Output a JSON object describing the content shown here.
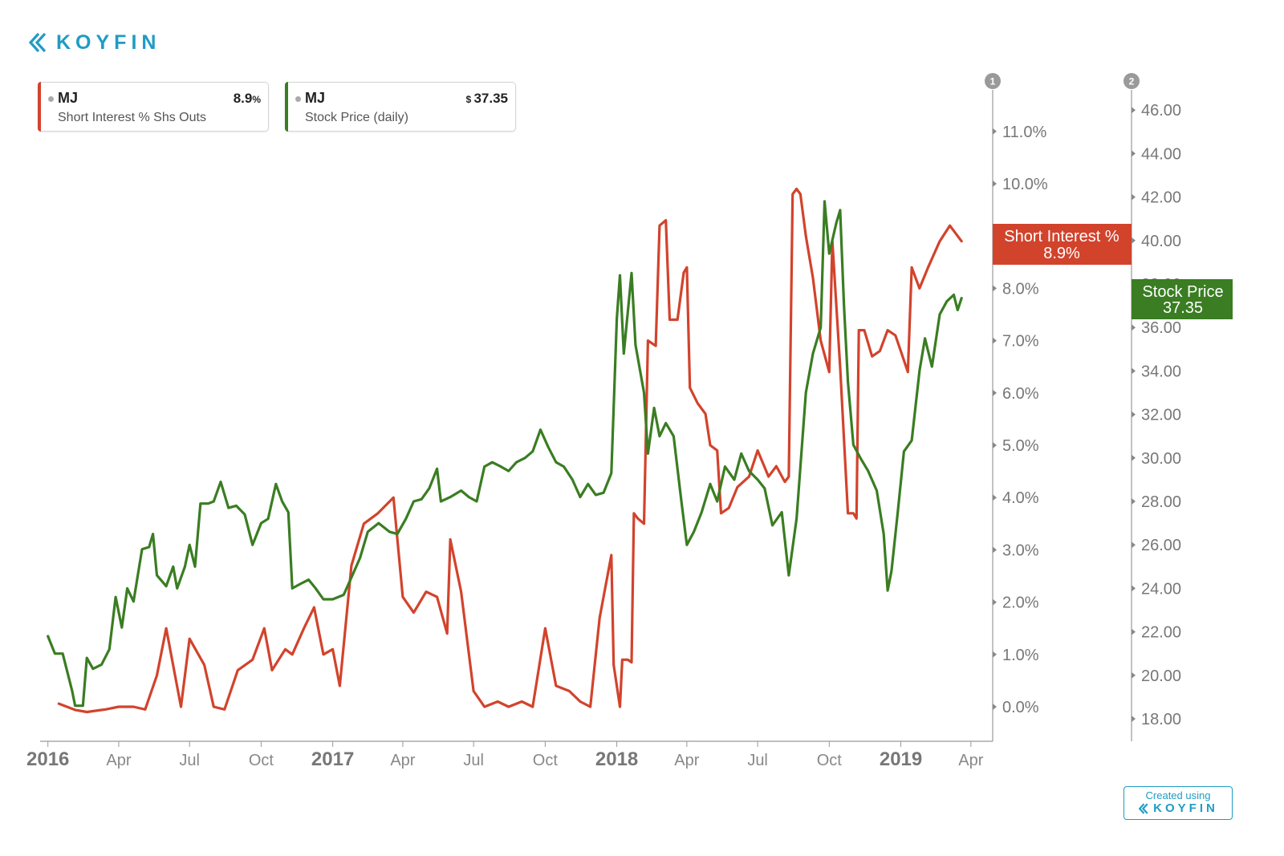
{
  "brand": {
    "name": "KOYFIN",
    "created_using": "Created using",
    "accent": "#1f9cc4"
  },
  "legend": [
    {
      "ticker": "MJ",
      "value": "8.9",
      "value_suffix": "%",
      "value_prefix": "",
      "description": "Short Interest % Shs Outs",
      "color": "#d2432c"
    },
    {
      "ticker": "MJ",
      "value": "37.35",
      "value_suffix": "",
      "value_prefix": "$ ",
      "description": "Stock Price (daily)",
      "color": "#3a7d22"
    }
  ],
  "chart_data": {
    "type": "line",
    "title": "",
    "x_tick_labels": [
      {
        "label": "2016",
        "date": "2016-01-01",
        "bold": true
      },
      {
        "label": "Apr",
        "date": "2016-04-01",
        "bold": false
      },
      {
        "label": "Jul",
        "date": "2016-07-01",
        "bold": false
      },
      {
        "label": "Oct",
        "date": "2016-10-01",
        "bold": false
      },
      {
        "label": "2017",
        "date": "2017-01-01",
        "bold": true
      },
      {
        "label": "Apr",
        "date": "2017-04-01",
        "bold": false
      },
      {
        "label": "Jul",
        "date": "2017-07-01",
        "bold": false
      },
      {
        "label": "Oct",
        "date": "2017-10-01",
        "bold": false
      },
      {
        "label": "2018",
        "date": "2018-01-01",
        "bold": true
      },
      {
        "label": "Apr",
        "date": "2018-04-01",
        "bold": false
      },
      {
        "label": "Jul",
        "date": "2018-07-01",
        "bold": false
      },
      {
        "label": "Oct",
        "date": "2018-10-01",
        "bold": false
      },
      {
        "label": "2019",
        "date": "2019-01-01",
        "bold": true
      },
      {
        "label": "Apr",
        "date": "2019-04-01",
        "bold": false
      }
    ],
    "xlim": [
      "2015-12-22",
      "2019-04-28"
    ],
    "axes": [
      {
        "id": "1",
        "label": "",
        "unit": "%",
        "ylim": [
          -0.6,
          12.0
        ],
        "ticks": [
          "0.0%",
          "1.0%",
          "2.0%",
          "3.0%",
          "4.0%",
          "5.0%",
          "6.0%",
          "7.0%",
          "8.0%",
          "9.0%",
          "10.0%",
          "11.0%"
        ],
        "tick_values": [
          0,
          1,
          2,
          3,
          4,
          5,
          6,
          7,
          8,
          9,
          10,
          11
        ]
      },
      {
        "id": "2",
        "label": "",
        "unit": "",
        "ylim": [
          17.0,
          47.0
        ],
        "ticks": [
          "18.00",
          "20.00",
          "22.00",
          "24.00",
          "26.00",
          "28.00",
          "30.00",
          "32.00",
          "34.00",
          "36.00",
          "38.00",
          "40.00",
          "42.00",
          "44.00",
          "46.00"
        ],
        "tick_values": [
          18,
          20,
          22,
          24,
          26,
          28,
          30,
          32,
          34,
          36,
          38,
          40,
          42,
          44,
          46
        ]
      }
    ],
    "series": [
      {
        "name": "Short Interest %",
        "axis": "1",
        "color": "#d2432c",
        "last_value": "8.9%",
        "points": [
          [
            "2016-01-15",
            0.06
          ],
          [
            "2016-02-05",
            -0.06
          ],
          [
            "2016-02-20",
            -0.1
          ],
          [
            "2016-03-15",
            -0.05
          ],
          [
            "2016-04-01",
            0.0
          ],
          [
            "2016-04-20",
            0.0
          ],
          [
            "2016-05-05",
            -0.05
          ],
          [
            "2016-05-20",
            0.6
          ],
          [
            "2016-06-01",
            1.5
          ],
          [
            "2016-06-20",
            0.0
          ],
          [
            "2016-07-01",
            1.3
          ],
          [
            "2016-07-20",
            0.8
          ],
          [
            "2016-08-01",
            0.0
          ],
          [
            "2016-08-15",
            -0.05
          ],
          [
            "2016-09-01",
            0.7
          ],
          [
            "2016-09-20",
            0.9
          ],
          [
            "2016-10-05",
            1.5
          ],
          [
            "2016-10-15",
            0.7
          ],
          [
            "2016-11-01",
            1.1
          ],
          [
            "2016-11-10",
            1.0
          ],
          [
            "2016-11-25",
            1.5
          ],
          [
            "2016-12-08",
            1.9
          ],
          [
            "2016-12-20",
            1.0
          ],
          [
            "2017-01-01",
            1.1
          ],
          [
            "2017-01-10",
            0.4
          ],
          [
            "2017-01-25",
            2.7
          ],
          [
            "2017-02-10",
            3.5
          ],
          [
            "2017-02-28",
            3.7
          ],
          [
            "2017-03-20",
            4.0
          ],
          [
            "2017-04-01",
            2.1
          ],
          [
            "2017-04-15",
            1.8
          ],
          [
            "2017-05-01",
            2.2
          ],
          [
            "2017-05-15",
            2.1
          ],
          [
            "2017-05-28",
            1.4
          ],
          [
            "2017-06-01",
            3.2
          ],
          [
            "2017-06-15",
            2.2
          ],
          [
            "2017-07-01",
            0.3
          ],
          [
            "2017-07-15",
            0.0
          ],
          [
            "2017-08-01",
            0.1
          ],
          [
            "2017-08-15",
            0.0
          ],
          [
            "2017-09-01",
            0.1
          ],
          [
            "2017-09-15",
            0.0
          ],
          [
            "2017-10-01",
            1.5
          ],
          [
            "2017-10-15",
            0.4
          ],
          [
            "2017-11-01",
            0.3
          ],
          [
            "2017-11-15",
            0.1
          ],
          [
            "2017-11-28",
            0.0
          ],
          [
            "2017-12-10",
            1.7
          ],
          [
            "2017-12-25",
            2.9
          ],
          [
            "2017-12-28",
            0.8
          ],
          [
            "2018-01-05",
            0.0
          ],
          [
            "2018-01-08",
            0.9
          ],
          [
            "2018-01-15",
            0.9
          ],
          [
            "2018-01-20",
            0.85
          ],
          [
            "2018-01-23",
            3.7
          ],
          [
            "2018-01-28",
            3.6
          ],
          [
            "2018-02-05",
            3.5
          ],
          [
            "2018-02-10",
            7.0
          ],
          [
            "2018-02-20",
            6.9
          ],
          [
            "2018-02-25",
            9.2
          ],
          [
            "2018-03-05",
            9.3
          ],
          [
            "2018-03-10",
            7.4
          ],
          [
            "2018-03-20",
            7.4
          ],
          [
            "2018-03-28",
            8.3
          ],
          [
            "2018-04-01",
            8.4
          ],
          [
            "2018-04-05",
            6.1
          ],
          [
            "2018-04-15",
            5.8
          ],
          [
            "2018-04-25",
            5.6
          ],
          [
            "2018-05-01",
            5.0
          ],
          [
            "2018-05-10",
            4.9
          ],
          [
            "2018-05-15",
            3.7
          ],
          [
            "2018-05-25",
            3.8
          ],
          [
            "2018-06-05",
            4.2
          ],
          [
            "2018-06-20",
            4.4
          ],
          [
            "2018-07-01",
            4.9
          ],
          [
            "2018-07-15",
            4.4
          ],
          [
            "2018-07-25",
            4.6
          ],
          [
            "2018-08-05",
            4.3
          ],
          [
            "2018-08-10",
            4.4
          ],
          [
            "2018-08-15",
            9.8
          ],
          [
            "2018-08-20",
            9.9
          ],
          [
            "2018-08-25",
            9.8
          ],
          [
            "2018-09-01",
            9.0
          ],
          [
            "2018-09-10",
            8.2
          ],
          [
            "2018-09-20",
            7.0
          ],
          [
            "2018-10-01",
            6.4
          ],
          [
            "2018-10-05",
            8.9
          ],
          [
            "2018-10-15",
            6.5
          ],
          [
            "2018-10-25",
            3.7
          ],
          [
            "2018-11-01",
            3.7
          ],
          [
            "2018-11-05",
            3.6
          ],
          [
            "2018-11-08",
            7.2
          ],
          [
            "2018-11-15",
            7.2
          ],
          [
            "2018-11-25",
            6.7
          ],
          [
            "2018-12-05",
            6.8
          ],
          [
            "2018-12-15",
            7.2
          ],
          [
            "2018-12-25",
            7.1
          ],
          [
            "2019-01-01",
            6.8
          ],
          [
            "2019-01-10",
            6.4
          ],
          [
            "2019-01-15",
            8.4
          ],
          [
            "2019-01-25",
            8.0
          ],
          [
            "2019-02-05",
            8.4
          ],
          [
            "2019-02-20",
            8.9
          ],
          [
            "2019-03-05",
            9.2
          ],
          [
            "2019-03-20",
            8.9
          ]
        ]
      },
      {
        "name": "Stock Price",
        "axis": "2",
        "color": "#3a7d22",
        "last_value": "37.35",
        "points": [
          [
            "2016-01-01",
            21.8
          ],
          [
            "2016-01-10",
            21.0
          ],
          [
            "2016-01-20",
            21.0
          ],
          [
            "2016-02-01",
            19.3
          ],
          [
            "2016-02-05",
            18.6
          ],
          [
            "2016-02-15",
            18.6
          ],
          [
            "2016-02-20",
            20.8
          ],
          [
            "2016-02-28",
            20.3
          ],
          [
            "2016-03-10",
            20.5
          ],
          [
            "2016-03-20",
            21.2
          ],
          [
            "2016-03-28",
            23.6
          ],
          [
            "2016-04-05",
            22.2
          ],
          [
            "2016-04-12",
            24.0
          ],
          [
            "2016-04-20",
            23.4
          ],
          [
            "2016-05-01",
            25.8
          ],
          [
            "2016-05-10",
            25.9
          ],
          [
            "2016-05-15",
            26.5
          ],
          [
            "2016-05-20",
            24.6
          ],
          [
            "2016-06-01",
            24.1
          ],
          [
            "2016-06-10",
            25.0
          ],
          [
            "2016-06-15",
            24.0
          ],
          [
            "2016-06-25",
            25.0
          ],
          [
            "2016-07-01",
            26.0
          ],
          [
            "2016-07-08",
            25.0
          ],
          [
            "2016-07-15",
            27.9
          ],
          [
            "2016-07-25",
            27.9
          ],
          [
            "2016-08-01",
            28.0
          ],
          [
            "2016-08-10",
            28.9
          ],
          [
            "2016-08-20",
            27.7
          ],
          [
            "2016-08-30",
            27.8
          ],
          [
            "2016-09-10",
            27.4
          ],
          [
            "2016-09-20",
            26.0
          ],
          [
            "2016-10-01",
            27.0
          ],
          [
            "2016-10-10",
            27.2
          ],
          [
            "2016-10-20",
            28.8
          ],
          [
            "2016-10-28",
            28.0
          ],
          [
            "2016-11-05",
            27.5
          ],
          [
            "2016-11-10",
            24.0
          ],
          [
            "2016-11-20",
            24.2
          ],
          [
            "2016-12-01",
            24.4
          ],
          [
            "2016-12-10",
            24.0
          ],
          [
            "2016-12-20",
            23.5
          ],
          [
            "2017-01-01",
            23.5
          ],
          [
            "2017-01-15",
            23.7
          ],
          [
            "2017-01-25",
            24.5
          ],
          [
            "2017-02-05",
            25.4
          ],
          [
            "2017-02-15",
            26.6
          ],
          [
            "2017-03-01",
            27.0
          ],
          [
            "2017-03-15",
            26.6
          ],
          [
            "2017-03-25",
            26.5
          ],
          [
            "2017-04-05",
            27.2
          ],
          [
            "2017-04-15",
            28.0
          ],
          [
            "2017-04-25",
            28.1
          ],
          [
            "2017-05-05",
            28.6
          ],
          [
            "2017-05-15",
            29.5
          ],
          [
            "2017-05-20",
            28.0
          ],
          [
            "2017-06-01",
            28.2
          ],
          [
            "2017-06-15",
            28.5
          ],
          [
            "2017-06-25",
            28.2
          ],
          [
            "2017-07-05",
            28.0
          ],
          [
            "2017-07-15",
            29.6
          ],
          [
            "2017-07-25",
            29.8
          ],
          [
            "2017-08-05",
            29.6
          ],
          [
            "2017-08-15",
            29.4
          ],
          [
            "2017-08-25",
            29.8
          ],
          [
            "2017-09-05",
            30.0
          ],
          [
            "2017-09-15",
            30.3
          ],
          [
            "2017-09-25",
            31.3
          ],
          [
            "2017-10-05",
            30.5
          ],
          [
            "2017-10-15",
            29.8
          ],
          [
            "2017-10-25",
            29.6
          ],
          [
            "2017-11-05",
            29.0
          ],
          [
            "2017-11-15",
            28.2
          ],
          [
            "2017-11-25",
            28.8
          ],
          [
            "2017-12-05",
            28.3
          ],
          [
            "2017-12-15",
            28.4
          ],
          [
            "2017-12-25",
            29.3
          ],
          [
            "2018-01-01",
            36.4
          ],
          [
            "2018-01-05",
            38.4
          ],
          [
            "2018-01-10",
            34.8
          ],
          [
            "2018-01-20",
            38.5
          ],
          [
            "2018-01-25",
            35.2
          ],
          [
            "2018-02-05",
            33.0
          ],
          [
            "2018-02-10",
            30.2
          ],
          [
            "2018-02-18",
            32.3
          ],
          [
            "2018-02-25",
            31.0
          ],
          [
            "2018-03-05",
            31.6
          ],
          [
            "2018-03-15",
            31.0
          ],
          [
            "2018-03-25",
            28.0
          ],
          [
            "2018-04-01",
            26.0
          ],
          [
            "2018-04-10",
            26.6
          ],
          [
            "2018-04-20",
            27.5
          ],
          [
            "2018-05-01",
            28.8
          ],
          [
            "2018-05-10",
            28.0
          ],
          [
            "2018-05-20",
            29.6
          ],
          [
            "2018-06-01",
            29.0
          ],
          [
            "2018-06-10",
            30.2
          ],
          [
            "2018-06-20",
            29.4
          ],
          [
            "2018-07-01",
            29.0
          ],
          [
            "2018-07-10",
            28.6
          ],
          [
            "2018-07-20",
            26.9
          ],
          [
            "2018-08-01",
            27.5
          ],
          [
            "2018-08-10",
            24.6
          ],
          [
            "2018-08-20",
            27.2
          ],
          [
            "2018-09-01",
            33.0
          ],
          [
            "2018-09-10",
            34.8
          ],
          [
            "2018-09-20",
            36.0
          ],
          [
            "2018-09-25",
            41.8
          ],
          [
            "2018-10-01",
            39.4
          ],
          [
            "2018-10-10",
            40.8
          ],
          [
            "2018-10-15",
            41.4
          ],
          [
            "2018-10-20",
            37.0
          ],
          [
            "2018-10-25",
            33.5
          ],
          [
            "2018-11-01",
            30.6
          ],
          [
            "2018-11-10",
            30.0
          ],
          [
            "2018-11-20",
            29.4
          ],
          [
            "2018-12-01",
            28.5
          ],
          [
            "2018-12-10",
            26.5
          ],
          [
            "2018-12-15",
            23.9
          ],
          [
            "2018-12-20",
            24.8
          ],
          [
            "2018-12-28",
            27.5
          ],
          [
            "2019-01-05",
            30.3
          ],
          [
            "2019-01-15",
            30.8
          ],
          [
            "2019-01-25",
            34.0
          ],
          [
            "2019-02-01",
            35.5
          ],
          [
            "2019-02-10",
            34.2
          ],
          [
            "2019-02-20",
            36.6
          ],
          [
            "2019-03-01",
            37.2
          ],
          [
            "2019-03-10",
            37.5
          ],
          [
            "2019-03-15",
            36.8
          ],
          [
            "2019-03-20",
            37.35
          ]
        ]
      }
    ],
    "axis_badges": [
      "1",
      "2"
    ],
    "grid": false,
    "legend_position": "top-left"
  }
}
